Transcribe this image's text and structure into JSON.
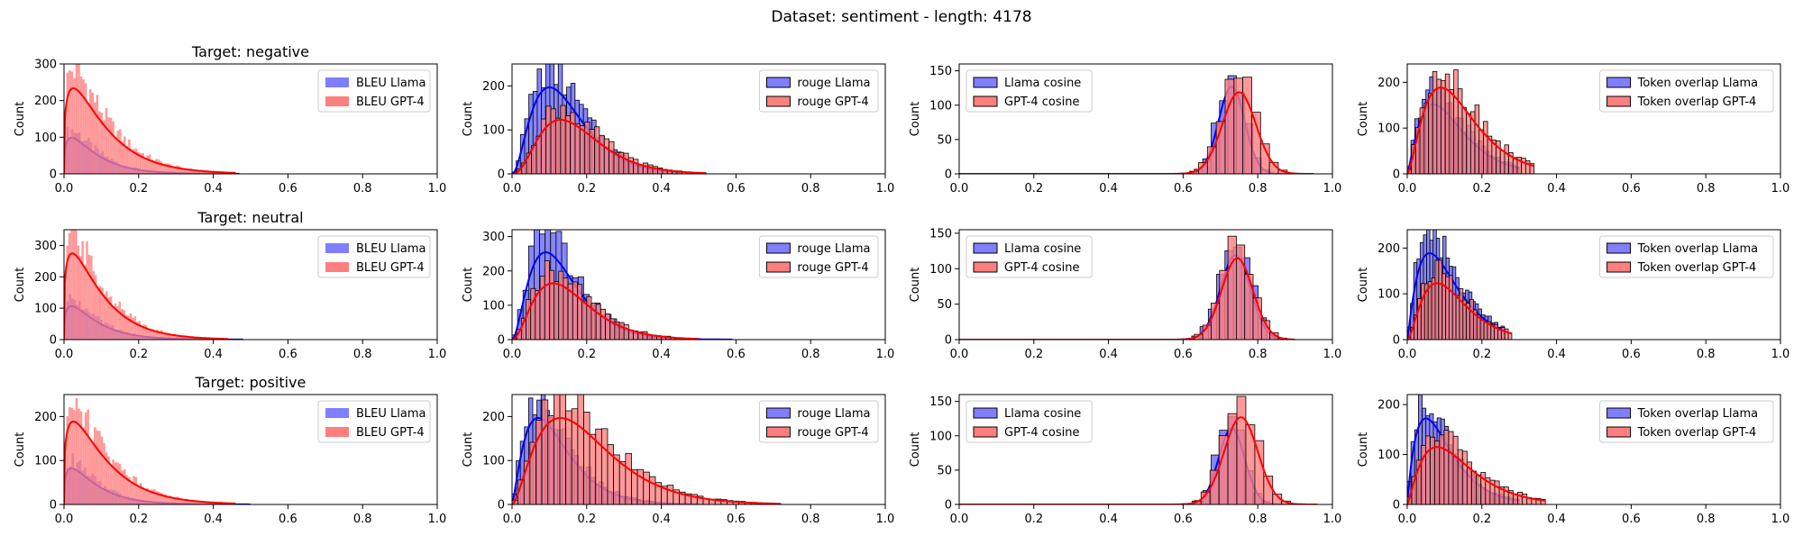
{
  "suptitle": "Dataset: sentiment - length: 4178",
  "colors": {
    "llama": "#0000ff",
    "gpt": "#ff0000",
    "llama_fill": "#7f7fff",
    "gpt_fill": "#ff7f7f"
  },
  "chart_data": [
    {
      "type": "histogram",
      "row": 0,
      "col": 0,
      "title": "Target: negative",
      "ylabel": "Count",
      "xlim": [
        0,
        1
      ],
      "ylim": [
        0,
        300
      ],
      "yticks": [
        0,
        100,
        200,
        300
      ],
      "xticks": [
        0.0,
        0.2,
        0.4,
        0.6,
        0.8,
        1.0
      ],
      "legend": "upper right",
      "bar_edges": false,
      "series": [
        {
          "name": "BLEU Llama",
          "color": "llama",
          "dist": {
            "mu": 0.02,
            "sig": 0.035,
            "skew": true,
            "peak": 120,
            "max": 0.47,
            "bins": 75
          }
        },
        {
          "name": "BLEU GPT-4",
          "color": "gpt",
          "dist": {
            "mu": 0.025,
            "sig": 0.045,
            "skew": true,
            "peak": 285,
            "max": 0.46,
            "bins": 75
          }
        }
      ]
    },
    {
      "type": "histogram",
      "row": 0,
      "col": 1,
      "title": "",
      "ylabel": "Count",
      "xlim": [
        0,
        1
      ],
      "ylim": [
        0,
        250
      ],
      "yticks": [
        0,
        100,
        200
      ],
      "xticks": [
        0.0,
        0.2,
        0.4,
        0.6,
        0.8,
        1.0
      ],
      "legend": "upper right",
      "bar_edges": true,
      "series": [
        {
          "name": "rouge Llama",
          "color": "llama",
          "dist": {
            "mu": 0.1,
            "sig": 0.07,
            "skew": true,
            "peak": 240,
            "max": 0.45,
            "bins": 40
          }
        },
        {
          "name": "rouge GPT-4",
          "color": "gpt",
          "dist": {
            "mu": 0.13,
            "sig": 0.08,
            "skew": true,
            "peak": 150,
            "max": 0.52,
            "bins": 40
          }
        }
      ]
    },
    {
      "type": "histogram",
      "row": 0,
      "col": 2,
      "title": "",
      "ylabel": "Count",
      "xlim": [
        0,
        1
      ],
      "ylim": [
        0,
        160
      ],
      "yticks": [
        0,
        50,
        100,
        150
      ],
      "xticks": [
        0.0,
        0.2,
        0.4,
        0.6,
        0.8,
        1.0
      ],
      "legend": "upper left",
      "bar_edges": true,
      "series": [
        {
          "name": "Llama cosine",
          "color": "llama",
          "dist": {
            "mu": 0.73,
            "sig": 0.035,
            "skew": false,
            "peak": 155,
            "max": 0.9,
            "bins": 40
          }
        },
        {
          "name": "GPT-4 cosine",
          "color": "gpt",
          "dist": {
            "mu": 0.75,
            "sig": 0.045,
            "skew": false,
            "peak": 145,
            "max": 0.95,
            "bins": 40
          }
        }
      ]
    },
    {
      "type": "histogram",
      "row": 0,
      "col": 3,
      "title": "",
      "ylabel": "Count",
      "xlim": [
        0,
        1
      ],
      "ylim": [
        0,
        240
      ],
      "yticks": [
        0,
        100,
        200
      ],
      "xticks": [
        0.0,
        0.2,
        0.4,
        0.6,
        0.8,
        1.0
      ],
      "legend": "upper right",
      "bar_edges": true,
      "series": [
        {
          "name": "Token overlap Llama",
          "color": "llama",
          "dist": {
            "mu": 0.07,
            "sig": 0.06,
            "skew": true,
            "peak": 185,
            "max": 0.3,
            "bins": 30
          }
        },
        {
          "name": "Token overlap GPT-4",
          "color": "gpt",
          "dist": {
            "mu": 0.09,
            "sig": 0.07,
            "skew": true,
            "peak": 230,
            "max": 0.34,
            "bins": 30
          }
        }
      ]
    },
    {
      "type": "histogram",
      "row": 1,
      "col": 0,
      "title": "Target: neutral",
      "ylabel": "Count",
      "xlim": [
        0,
        1
      ],
      "ylim": [
        0,
        350
      ],
      "yticks": [
        0,
        100,
        200,
        300
      ],
      "xticks": [
        0.0,
        0.2,
        0.4,
        0.6,
        0.8,
        1.0
      ],
      "legend": "upper right",
      "bar_edges": false,
      "series": [
        {
          "name": "BLEU Llama",
          "color": "llama",
          "dist": {
            "mu": 0.02,
            "sig": 0.035,
            "skew": true,
            "peak": 130,
            "max": 0.48,
            "bins": 75
          }
        },
        {
          "name": "BLEU GPT-4",
          "color": "gpt",
          "dist": {
            "mu": 0.022,
            "sig": 0.04,
            "skew": true,
            "peak": 335,
            "max": 0.44,
            "bins": 75
          }
        }
      ]
    },
    {
      "type": "histogram",
      "row": 1,
      "col": 1,
      "title": "",
      "ylabel": "Count",
      "xlim": [
        0,
        1
      ],
      "ylim": [
        0,
        320
      ],
      "yticks": [
        0,
        100,
        200,
        300
      ],
      "xticks": [
        0.0,
        0.2,
        0.4,
        0.6,
        0.8,
        1.0
      ],
      "legend": "upper right",
      "bar_edges": true,
      "series": [
        {
          "name": "rouge Llama",
          "color": "llama",
          "dist": {
            "mu": 0.09,
            "sig": 0.065,
            "skew": true,
            "peak": 310,
            "max": 0.59,
            "bins": 40
          }
        },
        {
          "name": "rouge GPT-4",
          "color": "gpt",
          "dist": {
            "mu": 0.11,
            "sig": 0.075,
            "skew": true,
            "peak": 200,
            "max": 0.5,
            "bins": 40
          }
        }
      ]
    },
    {
      "type": "histogram",
      "row": 1,
      "col": 2,
      "title": "",
      "ylabel": "Count",
      "xlim": [
        0,
        1
      ],
      "ylim": [
        0,
        155
      ],
      "yticks": [
        0,
        50,
        100,
        150
      ],
      "xticks": [
        0.0,
        0.2,
        0.4,
        0.6,
        0.8,
        1.0
      ],
      "legend": "upper left",
      "bar_edges": true,
      "series": [
        {
          "name": "Llama cosine",
          "color": "llama",
          "dist": {
            "mu": 0.74,
            "sig": 0.04,
            "skew": false,
            "peak": 145,
            "max": 0.89,
            "bins": 40
          }
        },
        {
          "name": "GPT-4 cosine",
          "color": "gpt",
          "dist": {
            "mu": 0.745,
            "sig": 0.042,
            "skew": false,
            "peak": 140,
            "max": 0.9,
            "bins": 40
          }
        }
      ]
    },
    {
      "type": "histogram",
      "row": 1,
      "col": 3,
      "title": "",
      "ylabel": "Count",
      "xlim": [
        0,
        1
      ],
      "ylim": [
        0,
        240
      ],
      "yticks": [
        0,
        100,
        200
      ],
      "xticks": [
        0.0,
        0.2,
        0.4,
        0.6,
        0.8,
        1.0
      ],
      "legend": "upper right",
      "bar_edges": true,
      "series": [
        {
          "name": "Token overlap Llama",
          "color": "llama",
          "dist": {
            "mu": 0.06,
            "sig": 0.055,
            "skew": true,
            "peak": 230,
            "max": 0.26,
            "bins": 30
          }
        },
        {
          "name": "Token overlap GPT-4",
          "color": "gpt",
          "dist": {
            "mu": 0.08,
            "sig": 0.06,
            "skew": true,
            "peak": 150,
            "max": 0.28,
            "bins": 30
          }
        }
      ]
    },
    {
      "type": "histogram",
      "row": 2,
      "col": 0,
      "title": "Target: positive",
      "ylabel": "Count",
      "xlim": [
        0,
        1
      ],
      "ylim": [
        0,
        250
      ],
      "yticks": [
        0,
        100,
        200
      ],
      "xticks": [
        0.0,
        0.2,
        0.4,
        0.6,
        0.8,
        1.0
      ],
      "legend": "upper right",
      "bar_edges": false,
      "series": [
        {
          "name": "BLEU Llama",
          "color": "llama",
          "dist": {
            "mu": 0.02,
            "sig": 0.035,
            "skew": true,
            "peak": 100,
            "max": 0.5,
            "bins": 75
          }
        },
        {
          "name": "BLEU GPT-4",
          "color": "gpt",
          "dist": {
            "mu": 0.025,
            "sig": 0.045,
            "skew": true,
            "peak": 230,
            "max": 0.46,
            "bins": 75
          }
        }
      ]
    },
    {
      "type": "histogram",
      "row": 2,
      "col": 1,
      "title": "",
      "ylabel": "Count",
      "xlim": [
        0,
        1
      ],
      "ylim": [
        0,
        250
      ],
      "yticks": [
        0,
        100,
        200
      ],
      "xticks": [
        0.0,
        0.2,
        0.4,
        0.6,
        0.8,
        1.0
      ],
      "legend": "upper right",
      "bar_edges": true,
      "series": [
        {
          "name": "rouge Llama",
          "color": "llama",
          "dist": {
            "mu": 0.07,
            "sig": 0.06,
            "skew": true,
            "peak": 240,
            "max": 0.5,
            "bins": 45
          }
        },
        {
          "name": "rouge GPT-4",
          "color": "gpt",
          "dist": {
            "mu": 0.13,
            "sig": 0.1,
            "skew": true,
            "peak": 240,
            "max": 0.72,
            "bins": 45
          }
        }
      ]
    },
    {
      "type": "histogram",
      "row": 2,
      "col": 2,
      "title": "",
      "ylabel": "Count",
      "xlim": [
        0,
        1
      ],
      "ylim": [
        0,
        160
      ],
      "yticks": [
        0,
        50,
        100,
        150
      ],
      "xticks": [
        0.0,
        0.2,
        0.4,
        0.6,
        0.8,
        1.0
      ],
      "legend": "upper left",
      "bar_edges": true,
      "series": [
        {
          "name": "Llama cosine",
          "color": "llama",
          "dist": {
            "mu": 0.73,
            "sig": 0.035,
            "skew": false,
            "peak": 135,
            "max": 0.9,
            "bins": 40
          }
        },
        {
          "name": "GPT-4 cosine",
          "color": "gpt",
          "dist": {
            "mu": 0.755,
            "sig": 0.045,
            "skew": false,
            "peak": 155,
            "max": 0.96,
            "bins": 40
          }
        }
      ]
    },
    {
      "type": "histogram",
      "row": 2,
      "col": 3,
      "title": "",
      "ylabel": "Count",
      "xlim": [
        0,
        1
      ],
      "ylim": [
        0,
        220
      ],
      "yticks": [
        0,
        100,
        200
      ],
      "xticks": [
        0.0,
        0.2,
        0.4,
        0.6,
        0.8,
        1.0
      ],
      "legend": "upper right",
      "bar_edges": true,
      "series": [
        {
          "name": "Token overlap Llama",
          "color": "llama",
          "dist": {
            "mu": 0.05,
            "sig": 0.05,
            "skew": true,
            "peak": 210,
            "max": 0.3,
            "bins": 30
          }
        },
        {
          "name": "Token overlap GPT-4",
          "color": "gpt",
          "dist": {
            "mu": 0.08,
            "sig": 0.07,
            "skew": true,
            "peak": 140,
            "max": 0.37,
            "bins": 30
          }
        }
      ]
    }
  ]
}
